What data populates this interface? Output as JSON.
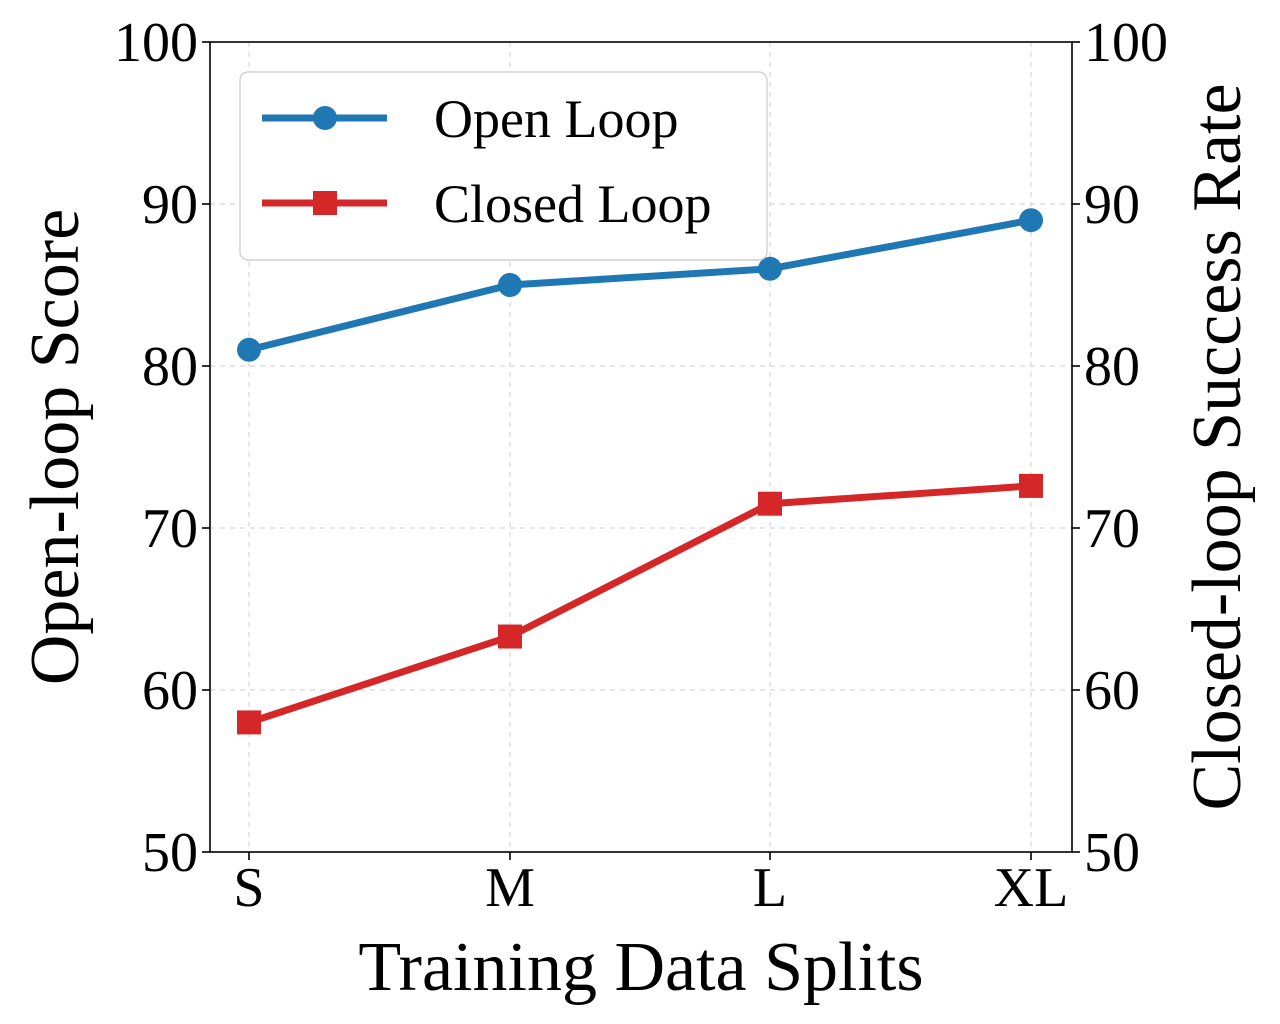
{
  "chart_data": {
    "type": "line",
    "categories": [
      "S",
      "M",
      "L",
      "XL"
    ],
    "series": [
      {
        "name": "Open Loop",
        "axis": "left",
        "values": [
          81,
          85,
          86,
          89
        ],
        "color": "#1f77b4",
        "marker": "circle"
      },
      {
        "name": "Closed Loop",
        "axis": "right",
        "values": [
          58,
          63.3,
          71.5,
          72.6
        ],
        "color": "#d62728",
        "marker": "square"
      }
    ],
    "xlabel": "Training Data Splits",
    "ylabel_left": "Open-loop Score",
    "ylabel_right": "Closed-loop Success Rate",
    "ylim_left": [
      50,
      100
    ],
    "ylim_right": [
      50,
      100
    ],
    "yticks_left": [
      "50",
      "60",
      "70",
      "80",
      "90",
      "100"
    ],
    "yticks_right": [
      "50",
      "60",
      "70",
      "80",
      "90",
      "100"
    ],
    "grid": true,
    "legend_position": "top-left",
    "legend": [
      "Open Loop",
      "Closed Loop"
    ]
  }
}
